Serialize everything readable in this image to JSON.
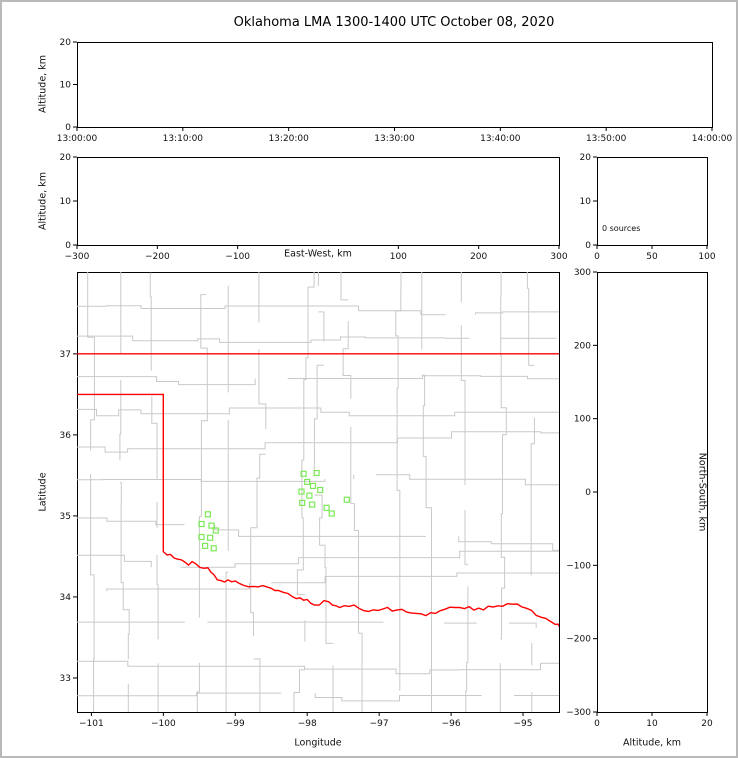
{
  "title": "Oklahoma LMA 1300-1400 UTC October 08, 2020",
  "colors": {
    "state_border": "#ff0000",
    "county_line": "#c9c9c9",
    "station_marker": "#7ce857",
    "axis": "#000000",
    "background": "#ffffff",
    "figure_border": "#b9b9b9"
  },
  "chart_data": [
    {
      "id": "time-altitude-panel",
      "type": "scatter",
      "xlabel": "",
      "ylabel": "Altitude, km",
      "xtick_labels": [
        "13:00:00",
        "13:10:00",
        "13:20:00",
        "13:30:00",
        "13:40:00",
        "13:50:00",
        "14:00:00"
      ],
      "yticks": [
        0,
        10,
        20
      ],
      "ylim": [
        0,
        20
      ],
      "points": []
    },
    {
      "id": "eastwest-altitude-panel",
      "type": "scatter",
      "xlabel": "East-West, km",
      "ylabel": "Altitude, km",
      "xticks": [
        -300,
        -200,
        -100,
        100,
        200,
        300
      ],
      "xlim": [
        -300,
        300
      ],
      "yticks": [
        0,
        10,
        20
      ],
      "ylim": [
        0,
        20
      ],
      "points": []
    },
    {
      "id": "altitude-source-histogram-panel",
      "type": "histogram",
      "annotation": "0 sources",
      "xticks": [
        0,
        50,
        100
      ],
      "xlim": [
        0,
        100
      ],
      "yticks": [
        0,
        10,
        20
      ],
      "ylim": [
        0,
        20
      ],
      "values": []
    },
    {
      "id": "plan-view-map-panel",
      "type": "scatter",
      "xlabel": "Longitude",
      "ylabel": "Latitude",
      "xticks": [
        -101,
        -100,
        -99,
        -98,
        -97,
        -96,
        -95
      ],
      "yticks": [
        33,
        34,
        35,
        36,
        37
      ],
      "xlim": [
        -101.2,
        -94.5
      ],
      "ylim": [
        32.58,
        38.01
      ],
      "stations": [
        {
          "lon": -99.38,
          "lat": 35.02
        },
        {
          "lon": -99.47,
          "lat": 34.9
        },
        {
          "lon": -99.33,
          "lat": 34.88
        },
        {
          "lon": -99.27,
          "lat": 34.82
        },
        {
          "lon": -99.47,
          "lat": 34.74
        },
        {
          "lon": -99.35,
          "lat": 34.73
        },
        {
          "lon": -99.42,
          "lat": 34.63
        },
        {
          "lon": -99.3,
          "lat": 34.6
        },
        {
          "lon": -98.05,
          "lat": 35.52
        },
        {
          "lon": -97.87,
          "lat": 35.53
        },
        {
          "lon": -98.0,
          "lat": 35.42
        },
        {
          "lon": -97.92,
          "lat": 35.37
        },
        {
          "lon": -98.08,
          "lat": 35.3
        },
        {
          "lon": -97.82,
          "lat": 35.32
        },
        {
          "lon": -97.97,
          "lat": 35.25
        },
        {
          "lon": -98.07,
          "lat": 35.16
        },
        {
          "lon": -97.93,
          "lat": 35.14
        },
        {
          "lon": -97.73,
          "lat": 35.1
        },
        {
          "lon": -97.66,
          "lat": 35.03
        },
        {
          "lon": -97.45,
          "lat": 35.2
        }
      ]
    },
    {
      "id": "northsouth-altitude-panel",
      "type": "scatter",
      "xlabel": "Altitude, km",
      "ylabel": "North-South, km",
      "xticks": [
        0,
        10,
        20
      ],
      "xlim": [
        0,
        20
      ],
      "yticks": [
        -300,
        -200,
        -100,
        0,
        100,
        200,
        300
      ],
      "ylim": [
        -300,
        300
      ],
      "points": []
    }
  ]
}
